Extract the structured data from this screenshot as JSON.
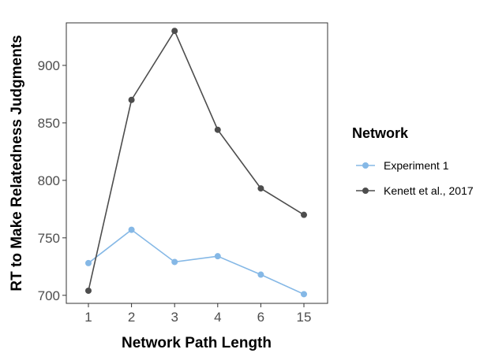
{
  "chart_data": {
    "type": "line",
    "title": "",
    "xlabel": "Network Path Length",
    "ylabel": "RT to Make Relatedness Judgments",
    "categories": [
      "1",
      "2",
      "3",
      "4",
      "6",
      "15"
    ],
    "ylim": [
      693,
      937
    ],
    "yticks": [
      700,
      750,
      800,
      850,
      900
    ],
    "grid": false,
    "legend": {
      "title": "Network",
      "placement": "right"
    },
    "series": [
      {
        "name": "Experiment 1",
        "color": "#85b8e6",
        "values": [
          728,
          757,
          729,
          734,
          718,
          701
        ]
      },
      {
        "name": "Kenett et al., 2017",
        "color": "#4d4d4d",
        "values": [
          704,
          870,
          930,
          844,
          793,
          770
        ]
      }
    ]
  }
}
